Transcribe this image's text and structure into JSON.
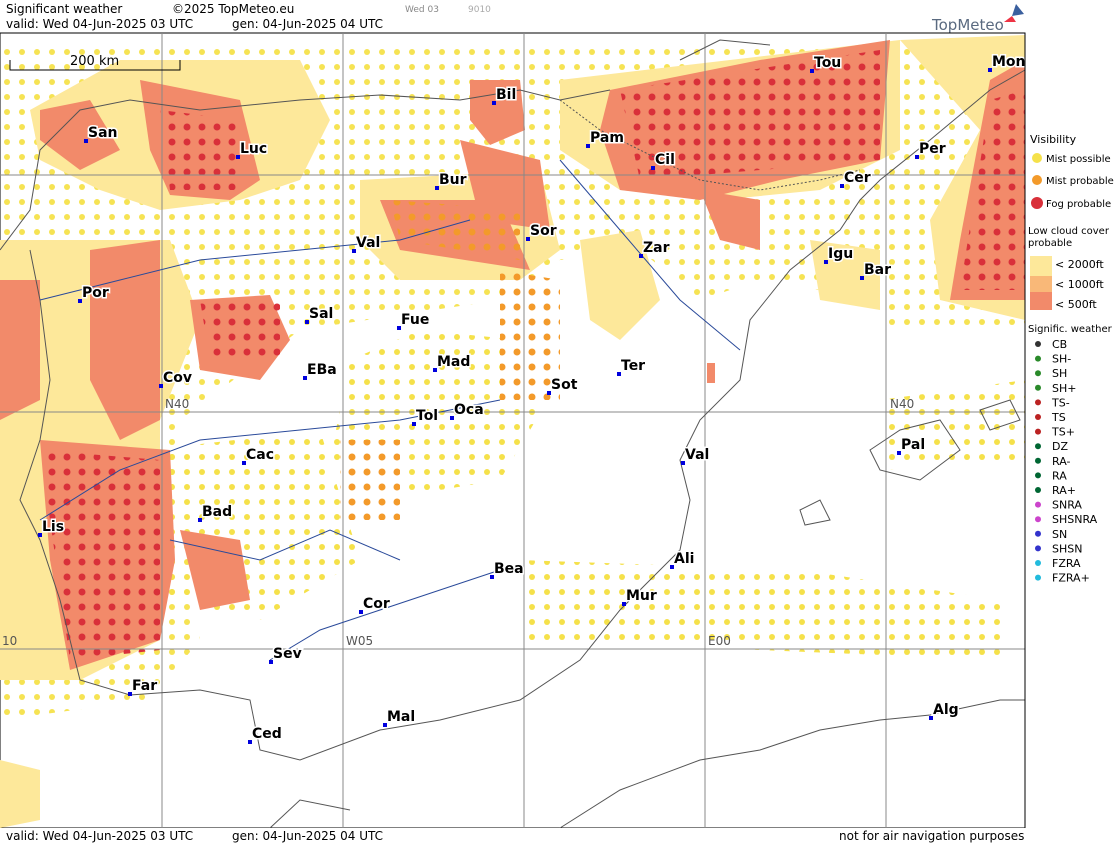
{
  "header": {
    "title": "Significant weather",
    "copyright": "©2025 TopMeteo.eu",
    "valid": "valid:  Wed  04-Jun-2025  03 UTC",
    "gen": "gen: 04-Jun-2025 04 UTC",
    "run": "Wed 03",
    "code": "9010",
    "brand": "TopMeteo"
  },
  "footer": {
    "valid": "valid:  Wed  04-Jun-2025  03 UTC",
    "gen": "gen: 04-Jun-2025 04 UTC",
    "disclaimer": "not for air navigation purposes"
  },
  "scale": "200 km",
  "grid_labels": [
    "N40",
    "N40",
    "W05",
    "E00",
    "10"
  ],
  "cities": [
    "San",
    "Luc",
    "Bil",
    "Pam",
    "Tou",
    "Mon",
    "Cil",
    "Per",
    "Bur",
    "Cer",
    "Val",
    "Sor",
    "Zar",
    "Igu",
    "Bar",
    "Por",
    "Sal",
    "Fue",
    "Mad",
    "EBa",
    "Cov",
    "Ter",
    "Sot",
    "Tol",
    "Oca",
    "Pal",
    "Cac",
    "Val",
    "Bad",
    "Lis",
    "Bea",
    "Ali",
    "Mur",
    "Cor",
    "Sev",
    "Far",
    "Mal",
    "Ced",
    "Alg"
  ],
  "legend": {
    "visibility": {
      "title": "Visibility",
      "items": [
        "Mist possible",
        "Mist probable",
        "Fog probable"
      ]
    },
    "low_cloud": {
      "title": "Low cloud cover probable",
      "items": [
        "< 2000ft",
        "< 1000ft",
        "<  500ft"
      ]
    },
    "weather": {
      "title": "Signific. weather",
      "items": [
        "CB",
        "SH-",
        "SH",
        "SH+",
        "TS-",
        "TS",
        "TS+",
        "DZ",
        "RA-",
        "RA",
        "RA+",
        "SNRA",
        "SHSNRA",
        "SN",
        "SHSN",
        "FZRA",
        "FZRA+"
      ]
    }
  }
}
